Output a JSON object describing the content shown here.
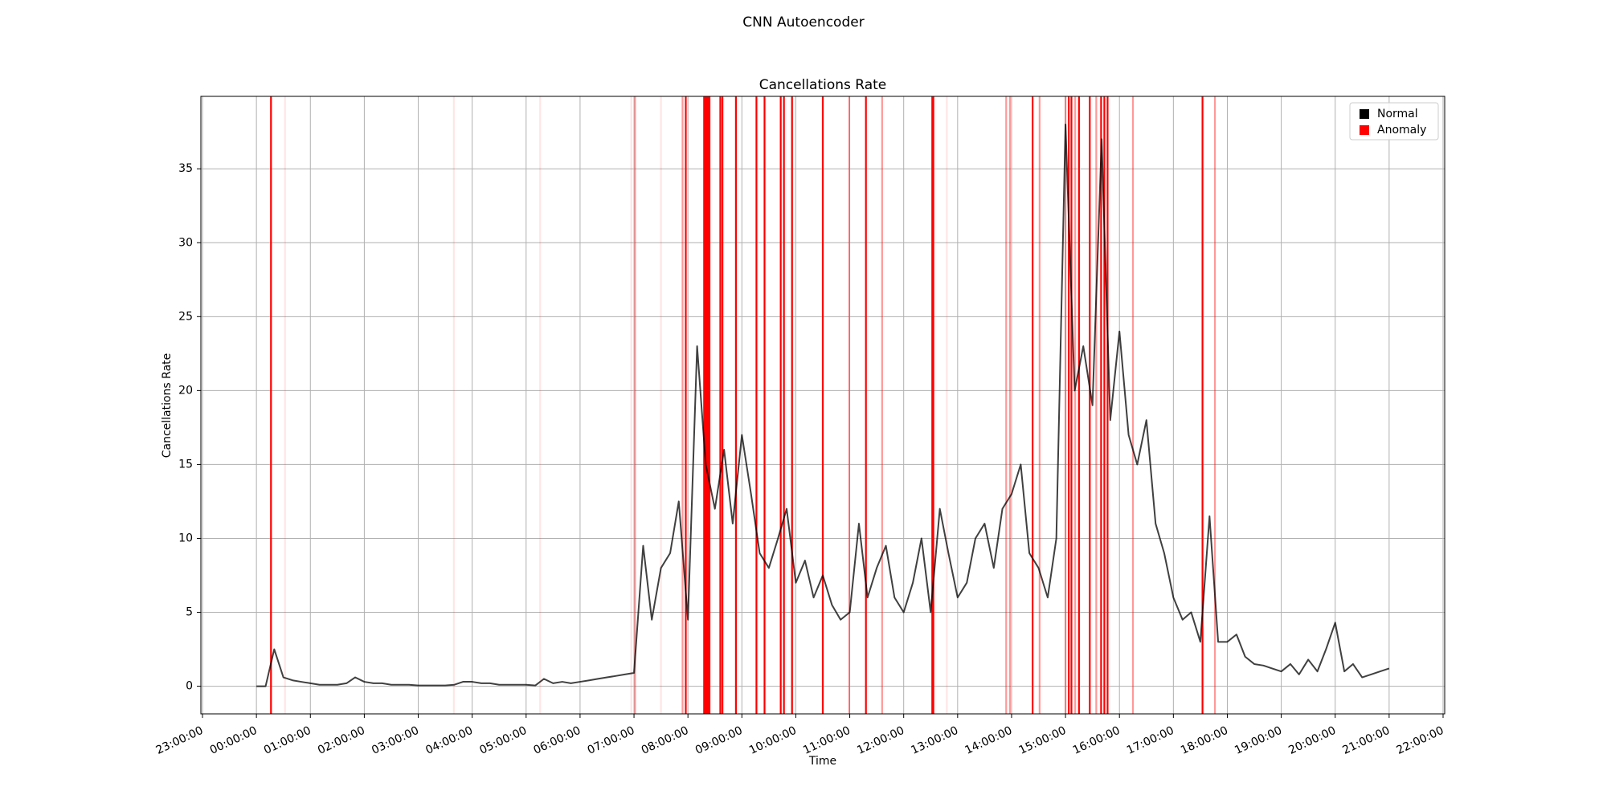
{
  "chart_data": {
    "type": "line",
    "suptitle": "CNN Autoencoder",
    "title": "Cancellations Rate",
    "xlabel": "Time",
    "ylabel": "Cancellations Rate",
    "xlim": [
      -1.03,
      22.03
    ],
    "ylim": [
      -1.87,
      39.9
    ],
    "xticks": [
      {
        "value": -1,
        "label": "23:00:00"
      },
      {
        "value": 0,
        "label": "00:00:00"
      },
      {
        "value": 1,
        "label": "01:00:00"
      },
      {
        "value": 2,
        "label": "02:00:00"
      },
      {
        "value": 3,
        "label": "03:00:00"
      },
      {
        "value": 4,
        "label": "04:00:00"
      },
      {
        "value": 5,
        "label": "05:00:00"
      },
      {
        "value": 6,
        "label": "06:00:00"
      },
      {
        "value": 7,
        "label": "07:00:00"
      },
      {
        "value": 8,
        "label": "08:00:00"
      },
      {
        "value": 9,
        "label": "09:00:00"
      },
      {
        "value": 10,
        "label": "10:00:00"
      },
      {
        "value": 11,
        "label": "11:00:00"
      },
      {
        "value": 12,
        "label": "12:00:00"
      },
      {
        "value": 13,
        "label": "13:00:00"
      },
      {
        "value": 14,
        "label": "14:00:00"
      },
      {
        "value": 15,
        "label": "15:00:00"
      },
      {
        "value": 16,
        "label": "16:00:00"
      },
      {
        "value": 17,
        "label": "17:00:00"
      },
      {
        "value": 18,
        "label": "18:00:00"
      },
      {
        "value": 19,
        "label": "19:00:00"
      },
      {
        "value": 20,
        "label": "20:00:00"
      },
      {
        "value": 21,
        "label": "21:00:00"
      },
      {
        "value": 22,
        "label": "22:00:00"
      }
    ],
    "yticks": [
      0,
      5,
      10,
      15,
      20,
      25,
      30,
      35
    ],
    "grid": true,
    "legend": "upper right",
    "line_alpha": 0.75,
    "series": [
      {
        "name": "Normal",
        "color": "#000000",
        "x": [
          0,
          0.17,
          0.33,
          0.5,
          0.67,
          0.83,
          1,
          1.17,
          1.33,
          1.5,
          1.67,
          1.83,
          2,
          2.17,
          2.33,
          2.5,
          2.67,
          2.83,
          3,
          3.17,
          3.33,
          3.5,
          3.67,
          3.83,
          4,
          4.17,
          4.33,
          4.5,
          4.67,
          4.83,
          5,
          5.17,
          5.33,
          5.5,
          5.67,
          5.83,
          6,
          6.17,
          6.33,
          6.5,
          6.67,
          6.83,
          7,
          7.17,
          7.33,
          7.5,
          7.67,
          7.83,
          8,
          8.17,
          8.33,
          8.5,
          8.67,
          8.83,
          9,
          9.17,
          9.33,
          9.5,
          9.67,
          9.83,
          10,
          10.17,
          10.33,
          10.5,
          10.67,
          10.83,
          11,
          11.17,
          11.33,
          11.5,
          11.67,
          11.83,
          12,
          12.17,
          12.33,
          12.5,
          12.67,
          12.83,
          13,
          13.17,
          13.33,
          13.5,
          13.67,
          13.83,
          14,
          14.17,
          14.33,
          14.5,
          14.67,
          14.83,
          15,
          15.17,
          15.33,
          15.5,
          15.67,
          15.83,
          16,
          16.17,
          16.33,
          16.5,
          16.67,
          16.83,
          17,
          17.17,
          17.33,
          17.5,
          17.67,
          17.83,
          18,
          18.17,
          18.33,
          18.5,
          18.67,
          18.83,
          19,
          19.17,
          19.33,
          19.5,
          19.67,
          19.83,
          20,
          20.17,
          20.33,
          20.5,
          20.67,
          20.83,
          21
        ],
        "values": [
          0,
          0,
          2.5,
          0.6,
          0.4,
          0.3,
          0.2,
          0.1,
          0.1,
          0.1,
          0.2,
          0.6,
          0.3,
          0.2,
          0.2,
          0.1,
          0.1,
          0.1,
          0.05,
          0.05,
          0.05,
          0.05,
          0.1,
          0.3,
          0.3,
          0.2,
          0.2,
          0.1,
          0.1,
          0.1,
          0.1,
          0.05,
          0.5,
          0.2,
          0.3,
          0.2,
          0.3,
          0.4,
          0.5,
          0.6,
          0.7,
          0.8,
          0.9,
          9.5,
          4.5,
          8,
          9,
          12.5,
          4.5,
          23,
          15,
          12,
          16,
          11,
          17,
          13,
          9,
          8,
          10,
          12,
          7,
          8.5,
          6,
          7.5,
          5.5,
          4.5,
          5,
          11,
          6,
          8,
          9.5,
          6,
          5,
          7,
          10,
          5,
          12,
          9,
          6,
          7,
          10,
          11,
          8,
          12,
          13,
          15,
          9,
          8,
          6,
          10,
          38,
          20,
          23,
          19,
          37,
          18,
          24,
          17,
          15,
          18,
          11,
          9,
          6,
          4.5,
          5,
          3,
          11.5,
          3,
          3,
          3.5,
          2,
          1.5,
          1.4,
          1.2,
          1,
          1.5,
          0.8,
          1.8,
          1,
          2.5,
          4.3,
          1,
          1.5,
          0.6,
          0.8,
          1,
          1.2
        ]
      },
      {
        "name": "Anomaly",
        "color": "#ff0000",
        "x": [
          0.27,
          7.96,
          8.3,
          8.32,
          8.34,
          8.36,
          8.38,
          8.4,
          8.6,
          8.64,
          8.89,
          9.27,
          9.42,
          9.72,
          9.78,
          9.93,
          10.5,
          11.3,
          12.53,
          12.55,
          14.39,
          15.06,
          15.11,
          15.25,
          15.45,
          15.66,
          15.72,
          15.78,
          17.54,
          7.02,
          7.9,
          10.99,
          11.6,
          13.9,
          13.97,
          14.52,
          15,
          15.18,
          15.57,
          16.25,
          17.77,
          0.53,
          3.66,
          5.26,
          6.95,
          7.5,
          12.8
        ],
        "alpha": [
          1,
          1,
          1,
          1,
          1,
          1,
          1,
          1,
          1,
          1,
          1,
          1,
          1,
          1,
          1,
          1,
          1,
          1,
          1,
          1,
          1,
          1,
          1,
          1,
          1,
          1,
          1,
          1,
          1,
          0.4,
          0.4,
          0.4,
          0.4,
          0.4,
          0.4,
          0.4,
          0.4,
          0.4,
          0.4,
          0.4,
          0.4,
          0.1,
          0.1,
          0.1,
          0.1,
          0.1,
          0.1
        ]
      }
    ]
  }
}
